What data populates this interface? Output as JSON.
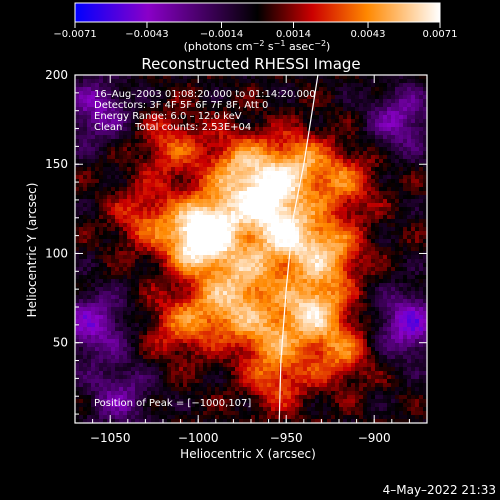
{
  "chart_data": {
    "type": "heatmap",
    "title": "Reconstructed RHESSI Image",
    "xlabel": "Heliocentric X (arcsec)",
    "ylabel": "Heliocentric Y (arcsec)",
    "xlim": [
      -1070,
      -870
    ],
    "ylim": [
      5,
      200
    ],
    "x_ticks": [
      -1050,
      -1000,
      -950,
      -900
    ],
    "x_tick_labels": [
      "−1050",
      "−1000",
      "−950",
      "−900"
    ],
    "y_ticks": [
      50,
      100,
      150,
      200
    ],
    "y_tick_labels": [
      "50",
      "100",
      "150",
      "200"
    ],
    "colorbar": {
      "range": [
        -0.0071,
        0.0071
      ],
      "ticks": [
        -0.0071,
        -0.0043,
        -0.0014,
        0.0014,
        0.0043,
        0.0071
      ],
      "tick_labels": [
        "−0.0071",
        "−0.0043",
        "−0.0014",
        "0.0014",
        "0.0043",
        "0.0071"
      ],
      "unit_parts": [
        "(photons cm",
        "−2",
        " s",
        "−1",
        " asec",
        "−2",
        ")"
      ],
      "colors": [
        "#0000ff",
        "#8a00c8",
        "#000000",
        "#cc0000",
        "#ff8800",
        "#ffffff"
      ]
    },
    "info_lines": [
      "16–Aug–2003 01:08:20.000 to 01:14:20.000",
      "Detectors: 3F 4F 5F 6F 7F 8F, Att 0",
      "Energy Range: 6.0 – 12.0 keV",
      "Clean    Total counts: 2.53E+04"
    ],
    "peak_text": "Position of Peak = [−1000,107]",
    "peak": [
      -1000,
      107
    ],
    "limb_curve": [
      [
        -932,
        200
      ],
      [
        -940,
        150
      ],
      [
        -946,
        120
      ],
      [
        -950,
        80
      ],
      [
        -953,
        40
      ],
      [
        -954,
        5
      ]
    ],
    "sources": [
      {
        "x": -1000,
        "y": 107,
        "peak": 0.0071
      },
      {
        "x": -990,
        "y": 120,
        "peak": 0.004
      },
      {
        "x": -962,
        "y": 130,
        "peak": 0.0058
      },
      {
        "x": -977,
        "y": 150,
        "peak": 0.0042
      },
      {
        "x": -945,
        "y": 150,
        "peak": 0.0045
      },
      {
        "x": -948,
        "y": 110,
        "peak": 0.005
      },
      {
        "x": -925,
        "y": 100,
        "peak": 0.0045
      },
      {
        "x": -935,
        "y": 70,
        "peak": 0.0055
      },
      {
        "x": -970,
        "y": 90,
        "peak": 0.004
      },
      {
        "x": -985,
        "y": 70,
        "peak": 0.0042
      },
      {
        "x": -960,
        "y": 55,
        "peak": 0.0038
      },
      {
        "x": -1010,
        "y": 60,
        "peak": 0.0032
      },
      {
        "x": -1030,
        "y": 120,
        "peak": 0.003
      },
      {
        "x": -1015,
        "y": 160,
        "peak": 0.003
      },
      {
        "x": -918,
        "y": 140,
        "peak": 0.0034
      },
      {
        "x": -920,
        "y": 45,
        "peak": 0.0035
      },
      {
        "x": -955,
        "y": 30,
        "peak": 0.003
      }
    ],
    "negative_regions": [
      {
        "x": -1060,
        "y": 60,
        "peak": -0.004
      },
      {
        "x": -1058,
        "y": 180,
        "peak": -0.0035
      },
      {
        "x": -880,
        "y": 60,
        "peak": -0.0045
      },
      {
        "x": -885,
        "y": 175,
        "peak": -0.0035
      },
      {
        "x": -1045,
        "y": 20,
        "peak": -0.003
      }
    ]
  },
  "footer": {
    "date": "4–May–2022 21:33"
  }
}
